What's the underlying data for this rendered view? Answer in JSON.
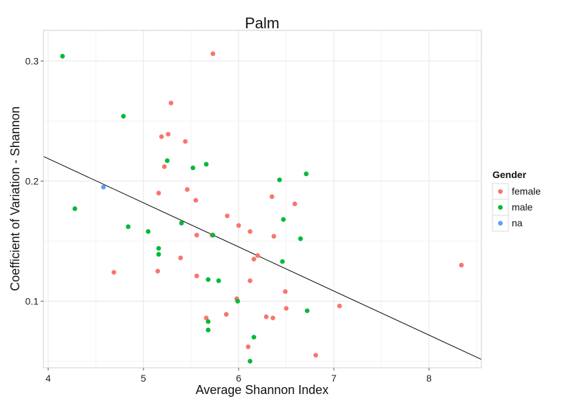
{
  "chart_data": {
    "type": "scatter",
    "title": "Palm",
    "xlabel": "Average Shannon Index",
    "ylabel": "Coefficient of Variation - Shannon",
    "xlim": [
      3.95,
      8.55
    ],
    "ylim": [
      0.0445,
      0.3255
    ],
    "x_ticks": [
      4,
      5,
      6,
      7,
      8
    ],
    "y_ticks": [
      0.1,
      0.2,
      0.3
    ],
    "x_tick_labels": [
      "4",
      "5",
      "6",
      "7",
      "8"
    ],
    "y_tick_labels": [
      "0.1",
      "0.2",
      "0.3"
    ],
    "grid": true,
    "legend": {
      "title": "Gender",
      "position": "right",
      "entries": [
        {
          "label": "female",
          "color": "#F8766D"
        },
        {
          "label": "male",
          "color": "#00BA38"
        },
        {
          "label": "na",
          "color": "#619CFF"
        }
      ]
    },
    "trend_line": {
      "x": [
        3.95,
        8.55
      ],
      "y": [
        0.2205,
        0.0515
      ]
    },
    "series": [
      {
        "name": "female",
        "color": "#F8766D",
        "points": [
          [
            5.73,
            0.306
          ],
          [
            5.29,
            0.265
          ],
          [
            5.26,
            0.239
          ],
          [
            5.19,
            0.237
          ],
          [
            5.44,
            0.233
          ],
          [
            5.22,
            0.212
          ],
          [
            5.46,
            0.193
          ],
          [
            5.16,
            0.19
          ],
          [
            5.55,
            0.184
          ],
          [
            6.35,
            0.187
          ],
          [
            6.59,
            0.181
          ],
          [
            5.88,
            0.171
          ],
          [
            6.0,
            0.163
          ],
          [
            6.12,
            0.158
          ],
          [
            5.56,
            0.155
          ],
          [
            5.72,
            0.155
          ],
          [
            6.37,
            0.154
          ],
          [
            6.2,
            0.138
          ],
          [
            5.39,
            0.136
          ],
          [
            6.16,
            0.135
          ],
          [
            4.69,
            0.124
          ],
          [
            5.15,
            0.125
          ],
          [
            5.56,
            0.121
          ],
          [
            6.12,
            0.117
          ],
          [
            6.49,
            0.108
          ],
          [
            5.98,
            0.102
          ],
          [
            7.06,
            0.096
          ],
          [
            6.5,
            0.094
          ],
          [
            5.87,
            0.089
          ],
          [
            6.29,
            0.087
          ],
          [
            6.36,
            0.086
          ],
          [
            5.66,
            0.086
          ],
          [
            6.1,
            0.062
          ],
          [
            6.81,
            0.055
          ],
          [
            8.34,
            0.13
          ]
        ]
      },
      {
        "name": "male",
        "color": "#00BA38",
        "points": [
          [
            4.15,
            0.304
          ],
          [
            4.79,
            0.254
          ],
          [
            5.25,
            0.217
          ],
          [
            5.66,
            0.214
          ],
          [
            5.52,
            0.211
          ],
          [
            6.71,
            0.206
          ],
          [
            6.43,
            0.201
          ],
          [
            4.28,
            0.177
          ],
          [
            6.47,
            0.168
          ],
          [
            5.4,
            0.165
          ],
          [
            4.84,
            0.162
          ],
          [
            5.05,
            0.158
          ],
          [
            5.73,
            0.155
          ],
          [
            6.65,
            0.152
          ],
          [
            5.16,
            0.144
          ],
          [
            5.16,
            0.139
          ],
          [
            6.46,
            0.133
          ],
          [
            5.68,
            0.118
          ],
          [
            5.79,
            0.117
          ],
          [
            5.99,
            0.1
          ],
          [
            6.72,
            0.092
          ],
          [
            5.68,
            0.083
          ],
          [
            5.68,
            0.076
          ],
          [
            6.16,
            0.07
          ],
          [
            6.12,
            0.05
          ]
        ]
      },
      {
        "name": "na",
        "color": "#619CFF",
        "points": [
          [
            4.58,
            0.195
          ]
        ]
      }
    ]
  }
}
